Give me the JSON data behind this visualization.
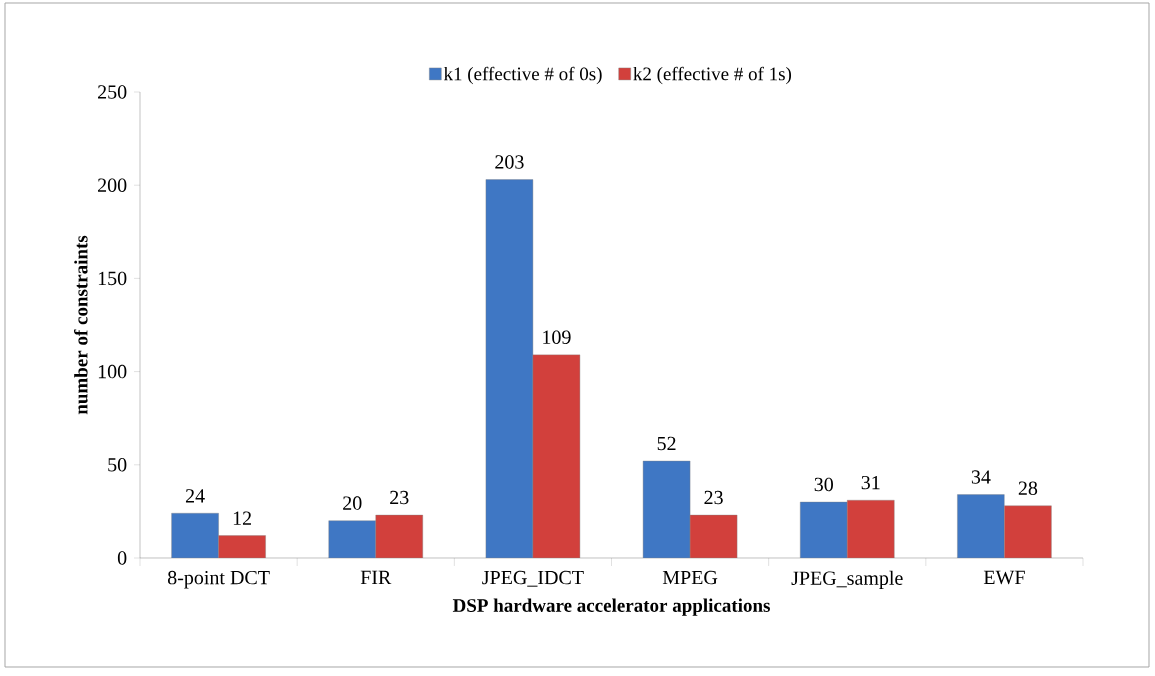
{
  "chart_data": {
    "type": "bar",
    "xlabel": "DSP hardware accelerator applications",
    "ylabel": "number of constraints",
    "categories": [
      "8-point DCT",
      "FIR",
      "JPEG_IDCT",
      "MPEG",
      "JPEG_sample",
      "EWF"
    ],
    "series": [
      {
        "name": "k1 (effective # of 0s)",
        "color": "#3f77c4",
        "values": [
          24,
          20,
          203,
          52,
          30,
          34
        ]
      },
      {
        "name": "k2 (effective # of 1s)",
        "color": "#d2403c",
        "values": [
          12,
          23,
          109,
          23,
          31,
          28
        ]
      }
    ],
    "ylim": [
      0,
      250
    ],
    "yticks": [
      0,
      50,
      100,
      150,
      200,
      250
    ],
    "data_labels": true,
    "legend": "top",
    "grid": false
  }
}
